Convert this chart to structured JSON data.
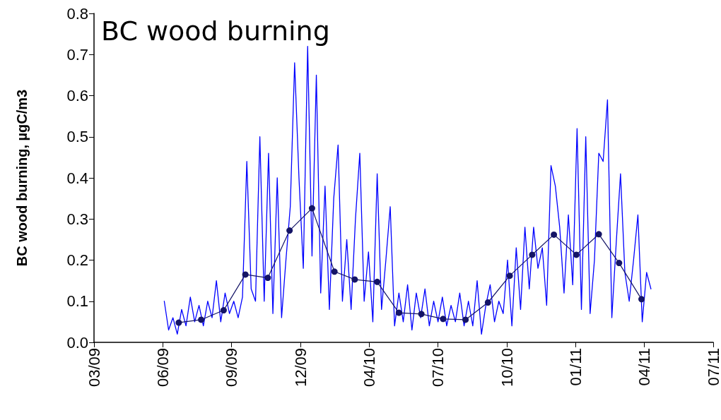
{
  "chart_data": {
    "type": "line",
    "title": "BC wood burning",
    "ylabel": "BC wood burning, µgC/m3",
    "ylim": [
      0,
      0.8
    ],
    "yticks": [
      {
        "value": 0,
        "label": "0.0"
      },
      {
        "value": 0.1,
        "label": "0.1"
      },
      {
        "value": 0.2,
        "label": "0.2"
      },
      {
        "value": 0.3,
        "label": "0.3"
      },
      {
        "value": 0.4,
        "label": "0.4"
      },
      {
        "value": 0.5,
        "label": "0.5"
      },
      {
        "value": 0.6,
        "label": "0.6"
      },
      {
        "value": 0.7,
        "label": "0.7"
      },
      {
        "value": 0.8,
        "label": "0.8"
      }
    ],
    "xlim": [
      "2009-03-20",
      "2011-07-23"
    ],
    "xticks": [
      {
        "value": "2009-03-20",
        "label": "03/09"
      },
      {
        "value": "2009-06-23",
        "label": "06/09"
      },
      {
        "value": "2009-09-26",
        "label": "09/09"
      },
      {
        "value": "2009-12-30",
        "label": "12/09"
      },
      {
        "value": "2010-04-04",
        "label": "04/10"
      },
      {
        "value": "2010-07-08",
        "label": "07/10"
      },
      {
        "value": "2010-10-11",
        "label": "10/10"
      },
      {
        "value": "2011-01-14",
        "label": "01/11"
      },
      {
        "value": "2011-04-19",
        "label": "04/11"
      },
      {
        "value": "2011-07-23",
        "label": "07/11"
      }
    ],
    "grid": false,
    "line_style": "solid",
    "series": [
      {
        "color": "#0000ff",
        "marker": "none",
        "x": [
          "2009-06-25",
          "2009-07-01",
          "2009-07-07",
          "2009-07-13",
          "2009-07-19",
          "2009-07-25",
          "2009-07-31",
          "2009-08-06",
          "2009-08-12",
          "2009-08-18",
          "2009-08-24",
          "2009-08-30",
          "2009-09-05",
          "2009-09-11",
          "2009-09-17",
          "2009-09-23",
          "2009-09-29",
          "2009-10-05",
          "2009-10-11",
          "2009-10-17",
          "2009-10-23",
          "2009-10-29",
          "2009-11-04",
          "2009-11-10",
          "2009-11-16",
          "2009-11-22",
          "2009-11-28",
          "2009-12-04",
          "2009-12-10",
          "2009-12-16",
          "2009-12-22",
          "2009-12-28",
          "2010-01-03",
          "2010-01-09",
          "2010-01-15",
          "2010-01-21",
          "2010-01-27",
          "2010-02-02",
          "2010-02-08",
          "2010-02-14",
          "2010-02-20",
          "2010-02-26",
          "2010-03-04",
          "2010-03-10",
          "2010-03-16",
          "2010-03-22",
          "2010-03-28",
          "2010-04-03",
          "2010-04-09",
          "2010-04-15",
          "2010-04-21",
          "2010-04-27",
          "2010-05-03",
          "2010-05-09",
          "2010-05-15",
          "2010-05-21",
          "2010-05-27",
          "2010-06-02",
          "2010-06-08",
          "2010-06-14",
          "2010-06-20",
          "2010-06-26",
          "2010-07-02",
          "2010-07-08",
          "2010-07-14",
          "2010-07-20",
          "2010-07-26",
          "2010-08-01",
          "2010-08-07",
          "2010-08-13",
          "2010-08-19",
          "2010-08-25",
          "2010-08-31",
          "2010-09-06",
          "2010-09-12",
          "2010-09-18",
          "2010-09-24",
          "2010-09-30",
          "2010-10-06",
          "2010-10-12",
          "2010-10-18",
          "2010-10-24",
          "2010-10-30",
          "2010-11-05",
          "2010-11-11",
          "2010-11-17",
          "2010-11-23",
          "2010-11-29",
          "2010-12-05",
          "2010-12-11",
          "2010-12-17",
          "2010-12-23",
          "2010-12-29",
          "2011-01-04",
          "2011-01-10",
          "2011-01-16",
          "2011-01-22",
          "2011-01-28",
          "2011-02-03",
          "2011-02-09",
          "2011-02-15",
          "2011-02-21",
          "2011-02-27",
          "2011-03-05",
          "2011-03-11",
          "2011-03-17",
          "2011-03-23",
          "2011-03-29",
          "2011-04-04",
          "2011-04-10",
          "2011-04-16",
          "2011-04-22",
          "2011-04-28"
        ],
        "values": [
          0.1,
          0.03,
          0.06,
          0.02,
          0.08,
          0.04,
          0.11,
          0.05,
          0.09,
          0.04,
          0.1,
          0.06,
          0.15,
          0.05,
          0.12,
          0.07,
          0.1,
          0.06,
          0.11,
          0.44,
          0.13,
          0.1,
          0.5,
          0.1,
          0.46,
          0.07,
          0.4,
          0.06,
          0.2,
          0.33,
          0.68,
          0.4,
          0.18,
          0.72,
          0.21,
          0.65,
          0.12,
          0.38,
          0.08,
          0.35,
          0.48,
          0.1,
          0.25,
          0.08,
          0.3,
          0.46,
          0.1,
          0.22,
          0.05,
          0.41,
          0.08,
          0.2,
          0.33,
          0.04,
          0.12,
          0.05,
          0.14,
          0.03,
          0.12,
          0.06,
          0.13,
          0.04,
          0.1,
          0.05,
          0.11,
          0.04,
          0.09,
          0.05,
          0.12,
          0.04,
          0.1,
          0.04,
          0.15,
          0.02,
          0.09,
          0.14,
          0.05,
          0.1,
          0.07,
          0.2,
          0.04,
          0.23,
          0.08,
          0.28,
          0.13,
          0.28,
          0.18,
          0.23,
          0.09,
          0.43,
          0.38,
          0.28,
          0.12,
          0.31,
          0.14,
          0.52,
          0.08,
          0.5,
          0.07,
          0.2,
          0.46,
          0.44,
          0.59,
          0.06,
          0.24,
          0.41,
          0.17,
          0.1,
          0.2,
          0.31,
          0.05,
          0.17,
          0.13
        ]
      },
      {
        "color": "#141466",
        "marker": "circle",
        "x": [
          "2009-07-15",
          "2009-08-15",
          "2009-09-15",
          "2009-10-15",
          "2009-11-15",
          "2009-12-15",
          "2010-01-15",
          "2010-02-15",
          "2010-03-15",
          "2010-04-15",
          "2010-05-15",
          "2010-06-15",
          "2010-07-15",
          "2010-08-15",
          "2010-09-15",
          "2010-10-15",
          "2010-11-15",
          "2010-12-15",
          "2011-01-15",
          "2011-02-15",
          "2011-03-15",
          "2011-04-15"
        ],
        "values": [
          0.048,
          0.055,
          0.078,
          0.165,
          0.157,
          0.272,
          0.326,
          0.172,
          0.153,
          0.147,
          0.072,
          0.069,
          0.057,
          0.055,
          0.097,
          0.162,
          0.213,
          0.262,
          0.213,
          0.263,
          0.193,
          0.105
        ]
      }
    ]
  }
}
